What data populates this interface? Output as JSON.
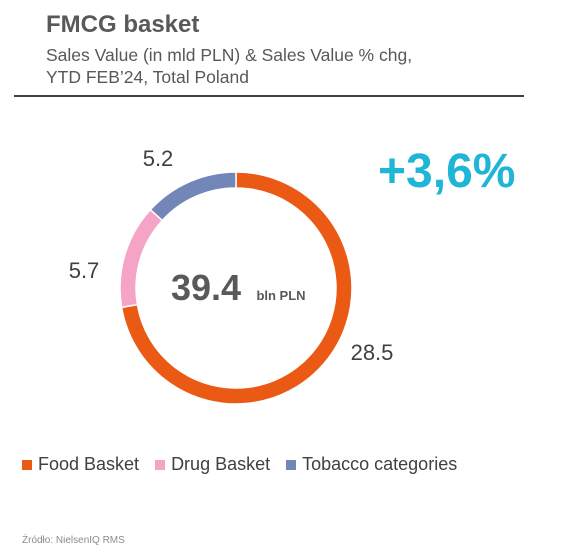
{
  "header": {
    "title": "FMCG basket",
    "subtitle_line1": "Sales Value (in mld PLN) & Sales Value % chg,",
    "subtitle_line2": "YTD FEB’24, Total Poland"
  },
  "growth_label": "+3,6%",
  "center": {
    "value": "39.4",
    "unit": "bln PLN"
  },
  "source": "Źródło: NielsenIQ RMS",
  "chart_data": {
    "type": "pie",
    "donut": true,
    "total": 39.4,
    "total_unit": "bln PLN",
    "categories": [
      "Food Basket",
      "Drug Basket",
      "Tobacco categories"
    ],
    "values": [
      28.5,
      5.7,
      5.2
    ],
    "value_labels": [
      "28.5",
      "5.7",
      "5.2"
    ],
    "colors": [
      "#EB5A14",
      "#F5A3C6",
      "#7386B8"
    ],
    "start": "12 o'clock, clockwise",
    "legend_position": "bottom-left"
  }
}
